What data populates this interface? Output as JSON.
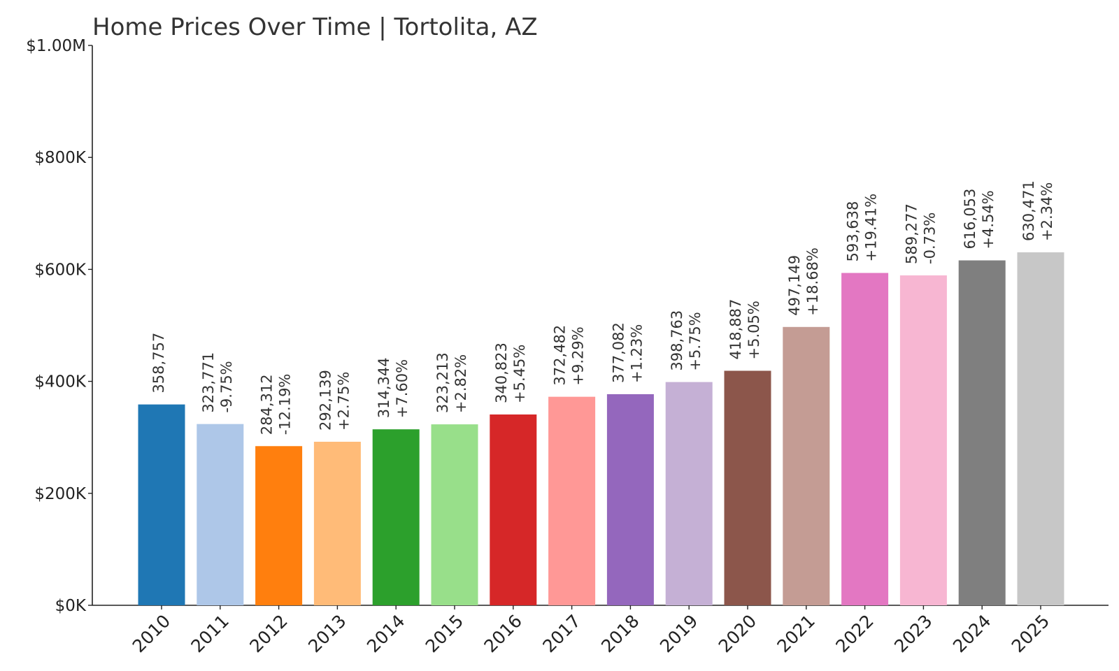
{
  "chart_data": {
    "type": "bar",
    "title": "Home Prices Over Time | Tortolita, AZ",
    "xlabel": "",
    "ylabel": "",
    "ylim": [
      0,
      1000000
    ],
    "yticks": [
      {
        "value": 0,
        "label": "$0K"
      },
      {
        "value": 200000,
        "label": "$200K"
      },
      {
        "value": 400000,
        "label": "$400K"
      },
      {
        "value": 600000,
        "label": "$600K"
      },
      {
        "value": 800000,
        "label": "$800K"
      },
      {
        "value": 1000000,
        "label": "$1.00M"
      }
    ],
    "grid": false,
    "legend": "none",
    "categories": [
      "2010",
      "2011",
      "2012",
      "2013",
      "2014",
      "2015",
      "2016",
      "2017",
      "2018",
      "2019",
      "2020",
      "2021",
      "2022",
      "2023",
      "2024",
      "2025"
    ],
    "values": [
      358757,
      323771,
      284312,
      292139,
      314344,
      323213,
      340823,
      372482,
      377082,
      398763,
      418887,
      497149,
      593638,
      589277,
      616053,
      630471
    ],
    "value_labels": [
      "358,757",
      "323,771",
      "284,312",
      "292,139",
      "314,344",
      "323,213",
      "340,823",
      "372,482",
      "377,082",
      "398,763",
      "418,887",
      "497,149",
      "593,638",
      "589,277",
      "616,053",
      "630,471"
    ],
    "change_labels": [
      "",
      "-9.75%",
      "-12.19%",
      "+2.75%",
      "+7.60%",
      "+2.82%",
      "+5.45%",
      "+9.29%",
      "+1.23%",
      "+5.75%",
      "+5.05%",
      "+18.68%",
      "+19.41%",
      "-0.73%",
      "+4.54%",
      "+2.34%"
    ],
    "colors": [
      "#1f77b4",
      "#aec7e8",
      "#ff7f0e",
      "#ffbb78",
      "#2ca02c",
      "#98df8a",
      "#d62728",
      "#ff9896",
      "#9467bd",
      "#c5b0d5",
      "#8c564b",
      "#c49c94",
      "#e377c2",
      "#f7b6d2",
      "#7f7f7f",
      "#c7c7c7"
    ]
  }
}
